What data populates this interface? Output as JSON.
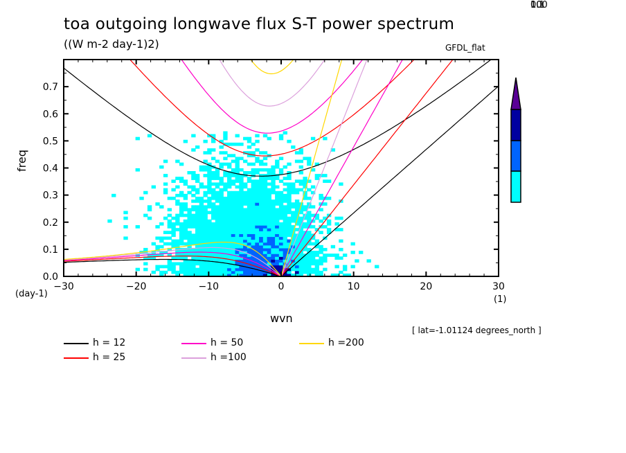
{
  "title": "toa outgoing longwave flux S-T power spectrum",
  "units": "((W m-2 day-1)2)",
  "model": "GFDL_flat",
  "lat_note": "[ lat=-1.01124 degrees_north ]",
  "chart_data": {
    "type": "heatmap",
    "title": "toa outgoing longwave flux S-T power spectrum",
    "subtitle": "((W m-2 day-1)2)",
    "xlabel": "wvn",
    "xunit": "(1)",
    "ylabel": "freq",
    "yunit": "(day-1)",
    "xlim": [
      -30,
      30
    ],
    "ylim": [
      0,
      0.8
    ],
    "xticks": [
      -30,
      -20,
      -10,
      0,
      10,
      20,
      30
    ],
    "xtick_labels": [
      "-30",
      "-20",
      "-10",
      "0",
      "10",
      "20",
      "30"
    ],
    "yticks": [
      0.0,
      0.1,
      0.2,
      0.3,
      0.4,
      0.5,
      0.6,
      0.7
    ],
    "ytick_labels": [
      "0.0",
      "0.1",
      "0.2",
      "0.3",
      "0.4",
      "0.5",
      "0.6",
      "0.7"
    ],
    "colorbar": {
      "levels": [
        0.1,
        1,
        10,
        100
      ],
      "labels": [
        "0.1",
        "1",
        "10",
        "100"
      ],
      "colors": [
        "#00ffff",
        "#0064ff",
        "#0000a0",
        "#5a0096"
      ],
      "extend": "max"
    },
    "power_regions": [
      {
        "level": 1,
        "x": [
          -16,
          10
        ],
        "y": [
          0.0,
          0.52
        ],
        "desc": "light cyan broad region, centred near wvn -5"
      },
      {
        "level": 2,
        "x": [
          -10,
          4
        ],
        "y": [
          0.0,
          0.3
        ],
        "desc": "medium blue core"
      },
      {
        "level": 3,
        "x": [
          -4,
          2
        ],
        "y": [
          0.0,
          0.08
        ],
        "desc": "dark blue near origin"
      }
    ],
    "dispersion_curves": {
      "equivalent_depths_m": [
        12,
        25,
        50,
        100,
        200
      ],
      "colors": [
        "#000000",
        "#ff0000",
        "#ff00c8",
        "#dca0dc",
        "#ffd700"
      ],
      "types": [
        "kelvin",
        "equatorial_rossby_n1",
        "inertia_gravity_n1"
      ]
    },
    "legend": [
      {
        "label": "h = 12",
        "color": "#000000"
      },
      {
        "label": "h = 25",
        "color": "#ff0000"
      },
      {
        "label": "h = 50",
        "color": "#ff00c8"
      },
      {
        "label": "h =100",
        "color": "#dca0dc"
      },
      {
        "label": "h =200",
        "color": "#ffd700"
      }
    ]
  }
}
